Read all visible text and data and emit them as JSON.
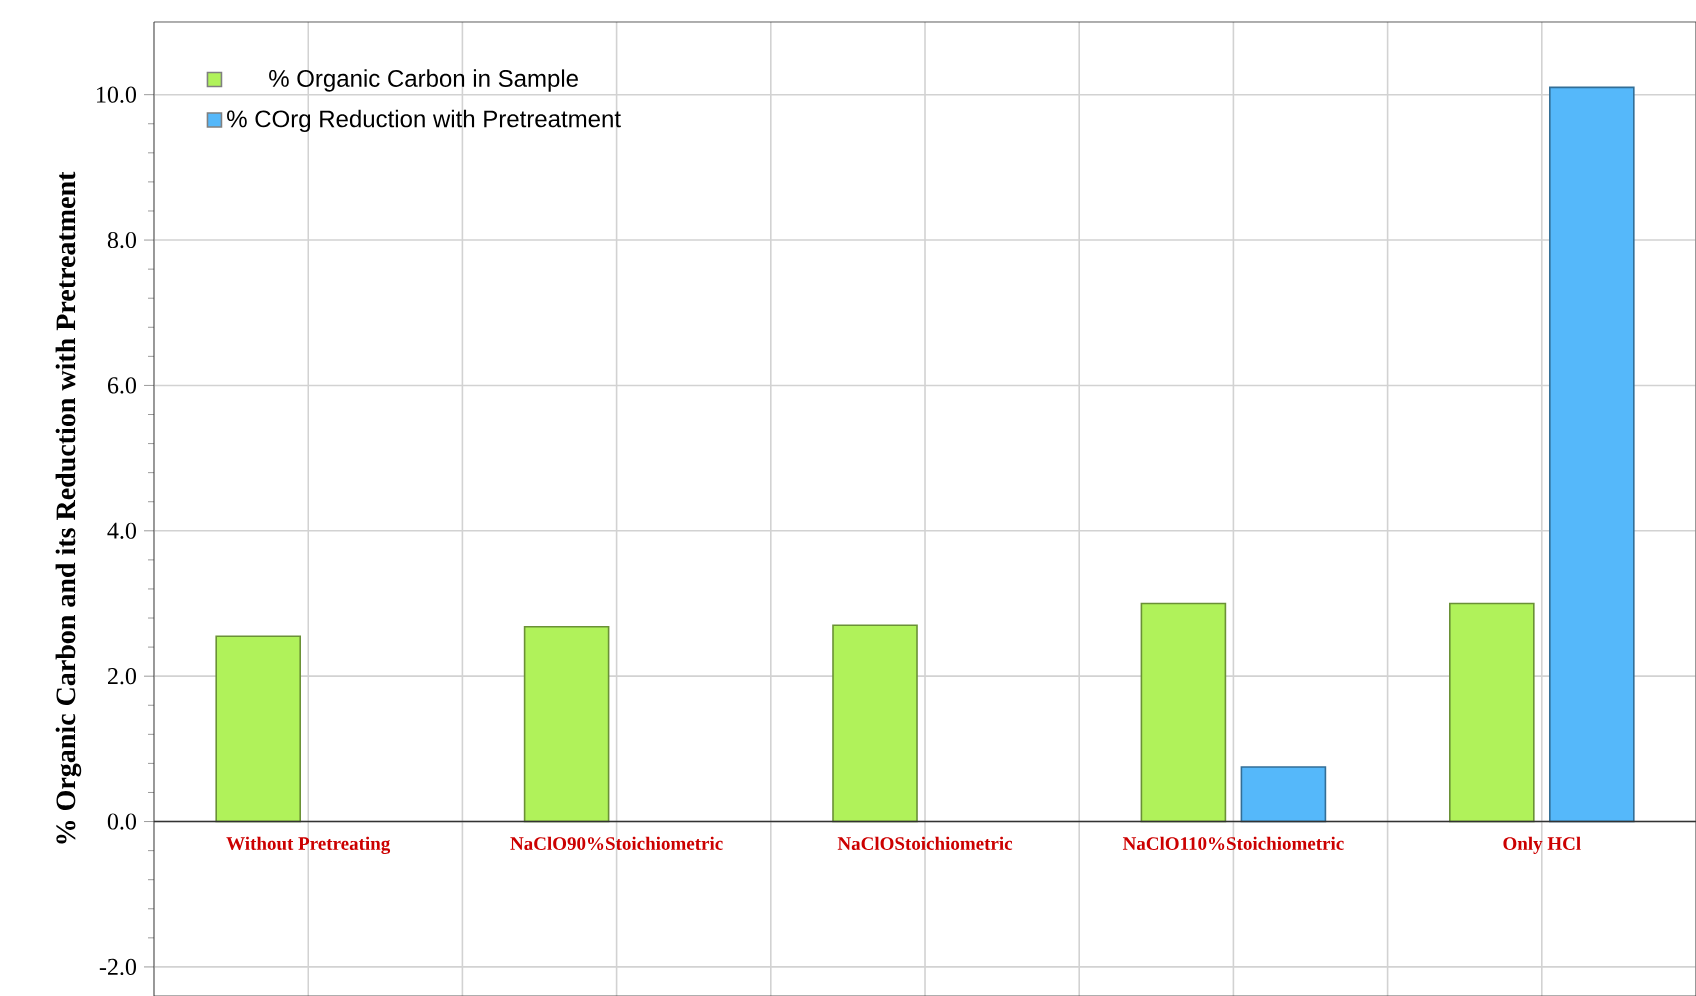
{
  "chart_data": {
    "type": "bar",
    "ylabel": "% Organic Carbon and its Reduction with Pretreatment",
    "categories": [
      "Without Pretreating",
      "NaClO90%Stoichiometric",
      "NaClOStoichiometric",
      "NaClO110%Stoichiometric",
      "Only HCl"
    ],
    "series": [
      {
        "name": "% Organic Carbon in Sample",
        "color": "#b0f25a",
        "values": [
          2.55,
          2.68,
          2.7,
          3.0,
          3.0
        ]
      },
      {
        "name": "% COrg Reduction with Pretreatment",
        "color": "#55b8fa",
        "values": [
          null,
          null,
          null,
          0.75,
          10.1
        ]
      }
    ],
    "ylim": [
      -2.4,
      11
    ],
    "yticks": [
      {
        "value": -2,
        "label": "-2.0"
      },
      {
        "value": 0,
        "label": "0.0"
      },
      {
        "value": 2,
        "label": "2.0"
      },
      {
        "value": 4,
        "label": "4.0"
      },
      {
        "value": 6,
        "label": "6.0"
      },
      {
        "value": 8,
        "label": "8.0"
      },
      {
        "value": 10,
        "label": "10.0"
      }
    ],
    "grid": true,
    "legend": "top left"
  }
}
